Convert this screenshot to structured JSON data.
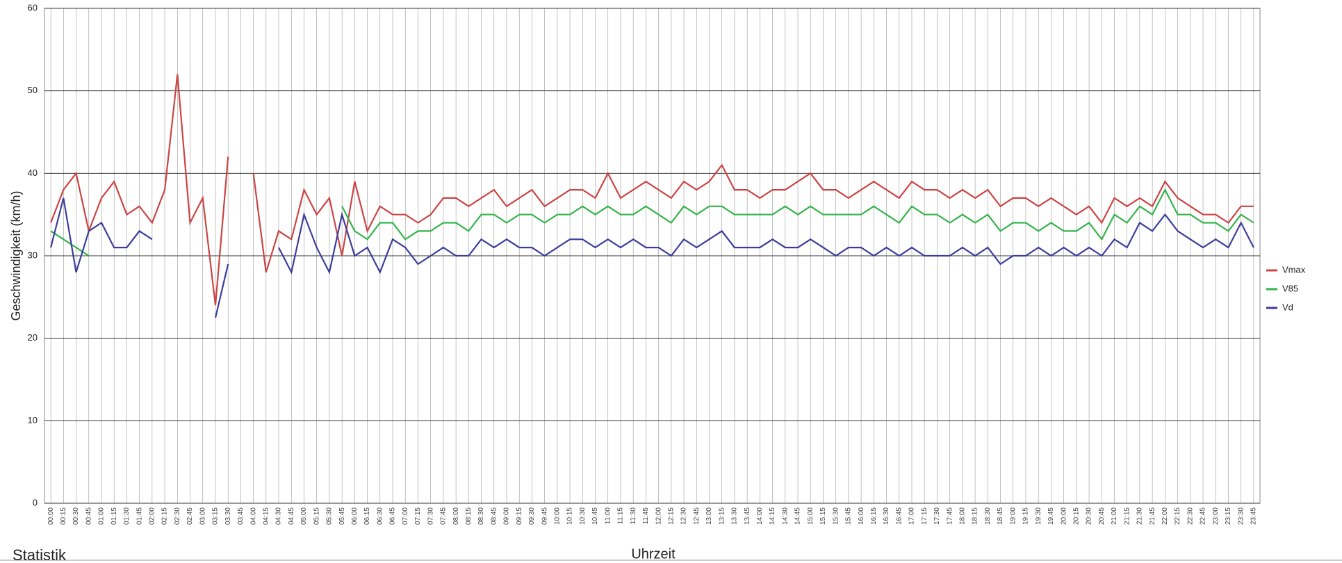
{
  "chart_data": {
    "type": "line",
    "y_label": "Geschwindigkeit (km/h)",
    "x_label": "Uhrzeit",
    "section_title": "Statistik",
    "categories": [
      "00:00",
      "00:15",
      "00:30",
      "00:45",
      "01:00",
      "01:15",
      "01:30",
      "01:45",
      "02:00",
      "02:15",
      "02:30",
      "02:45",
      "03:00",
      "03:15",
      "03:30",
      "03:45",
      "04:00",
      "04:15",
      "04:30",
      "04:45",
      "05:00",
      "05:15",
      "05:30",
      "05:45",
      "06:00",
      "06:15",
      "06:30",
      "06:45",
      "07:00",
      "07:15",
      "07:30",
      "07:45",
      "08:00",
      "08:15",
      "08:30",
      "08:45",
      "09:00",
      "09:15",
      "09:30",
      "09:45",
      "10:00",
      "10:15",
      "10:30",
      "10:45",
      "11:00",
      "11:15",
      "11:30",
      "11:45",
      "12:00",
      "12:15",
      "12:30",
      "12:45",
      "13:00",
      "13:15",
      "13:30",
      "13:45",
      "14:00",
      "14:15",
      "14:30",
      "14:45",
      "15:00",
      "15:15",
      "15:30",
      "15:45",
      "16:00",
      "16:15",
      "16:30",
      "16:45",
      "17:00",
      "17:15",
      "17:30",
      "17:45",
      "18:00",
      "18:15",
      "18:30",
      "18:45",
      "19:00",
      "19:15",
      "19:30",
      "19:45",
      "20:00",
      "20:15",
      "20:30",
      "20:45",
      "21:00",
      "21:15",
      "21:30",
      "21:45",
      "22:00",
      "22:15",
      "22:30",
      "22:45",
      "23:00",
      "23:15",
      "23:30",
      "23:45"
    ],
    "series": [
      {
        "name": "Vmax",
        "color": "#cc4444",
        "values": [
          34,
          38,
          40,
          33,
          37,
          39,
          35,
          36,
          34,
          38,
          52,
          34,
          37,
          24,
          42,
          null,
          40,
          28,
          33,
          32,
          38,
          35,
          37,
          30,
          39,
          33,
          36,
          35,
          35,
          34,
          35,
          37,
          37,
          36,
          37,
          38,
          36,
          37,
          38,
          36,
          37,
          38,
          38,
          37,
          40,
          37,
          38,
          39,
          38,
          37,
          39,
          38,
          39,
          41,
          38,
          38,
          37,
          38,
          38,
          39,
          40,
          38,
          38,
          37,
          38,
          39,
          38,
          37,
          39,
          38,
          38,
          37,
          38,
          37,
          38,
          36,
          37,
          37,
          36,
          37,
          36,
          35,
          36,
          34,
          37,
          36,
          37,
          36,
          39,
          37,
          36,
          35,
          35,
          34,
          36,
          36
        ]
      },
      {
        "name": "V85",
        "color": "#33b34a",
        "values": [
          33,
          32,
          31,
          30,
          null,
          null,
          null,
          null,
          null,
          null,
          null,
          null,
          null,
          null,
          null,
          null,
          null,
          null,
          null,
          null,
          null,
          null,
          null,
          36,
          33,
          32,
          34,
          34,
          32,
          33,
          33,
          34,
          34,
          33,
          35,
          35,
          34,
          35,
          35,
          34,
          35,
          35,
          36,
          35,
          36,
          35,
          35,
          36,
          35,
          34,
          36,
          35,
          36,
          36,
          35,
          35,
          35,
          35,
          36,
          35,
          36,
          35,
          35,
          35,
          35,
          36,
          35,
          34,
          36,
          35,
          35,
          34,
          35,
          34,
          35,
          33,
          34,
          34,
          33,
          34,
          33,
          33,
          34,
          32,
          35,
          34,
          36,
          35,
          38,
          35,
          35,
          34,
          34,
          33,
          35,
          34
        ]
      },
      {
        "name": "Vd",
        "color": "#3c3c9c",
        "values": [
          31,
          37,
          28,
          33,
          34,
          31,
          31,
          33,
          32,
          null,
          null,
          null,
          null,
          22.5,
          29,
          null,
          null,
          null,
          31,
          28,
          35,
          31,
          28,
          35,
          30,
          31,
          28,
          32,
          31,
          29,
          30,
          31,
          30,
          30,
          32,
          31,
          32,
          31,
          31,
          30,
          31,
          32,
          32,
          31,
          32,
          31,
          32,
          31,
          31,
          30,
          32,
          31,
          32,
          33,
          31,
          31,
          31,
          32,
          31,
          31,
          32,
          31,
          30,
          31,
          31,
          30,
          31,
          30,
          31,
          30,
          30,
          30,
          31,
          30,
          31,
          29,
          30,
          30,
          31,
          30,
          31,
          30,
          31,
          30,
          32,
          31,
          34,
          33,
          35,
          33,
          32,
          31,
          32,
          31,
          34,
          31
        ]
      }
    ],
    "ylim": [
      0,
      60
    ],
    "yticks": [
      0,
      10,
      20,
      30,
      40,
      50,
      60
    ],
    "grid": true,
    "legend": "right"
  }
}
